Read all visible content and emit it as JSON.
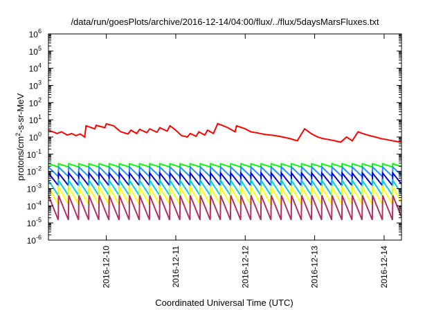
{
  "chart_data": {
    "type": "line",
    "title": "/data/run/goesPlots/archive/2016-12-14/04:00/flux/../flux/5daysMarsFluxes.txt",
    "xlabel": "Coordinated Universal Time (UTC)",
    "ylabel": {
      "pre": "protons/cm",
      "sup": "2",
      "post": "-s-sr-MeV"
    },
    "y_scale": "log",
    "grid": false,
    "legend": "none",
    "xlim": [
      "2016-12-09T04:00",
      "2016-12-14T06:00"
    ],
    "ylim": [
      1e-06,
      1000000.0
    ],
    "x_ticks": [
      {
        "label": "2016-12-10",
        "x": "2016-12-10T00:00"
      },
      {
        "label": "2016-12-11",
        "x": "2016-12-11T00:00"
      },
      {
        "label": "2016-12-12",
        "x": "2016-12-12T00:00"
      },
      {
        "label": "2016-12-13",
        "x": "2016-12-13T00:00"
      },
      {
        "label": "2016-12-14",
        "x": "2016-12-14T00:00"
      }
    ],
    "y_ticks": [
      {
        "base": "10",
        "exp": "-6",
        "value": 1e-06
      },
      {
        "base": "10",
        "exp": "-5",
        "value": 1e-05
      },
      {
        "base": "10",
        "exp": "-4",
        "value": 0.0001
      },
      {
        "base": "10",
        "exp": "-3",
        "value": 0.001
      },
      {
        "base": "10",
        "exp": "-2",
        "value": 0.01
      },
      {
        "base": "10",
        "exp": "-1",
        "value": 0.1
      },
      {
        "base": "10",
        "exp": "0",
        "value": 1
      },
      {
        "base": "10",
        "exp": "1",
        "value": 10
      },
      {
        "base": "10",
        "exp": "2",
        "value": 100
      },
      {
        "base": "10",
        "exp": "3",
        "value": 1000
      },
      {
        "base": "10",
        "exp": "4",
        "value": 10000
      },
      {
        "base": "10",
        "exp": "5",
        "value": 100000
      },
      {
        "base": "10",
        "exp": "6",
        "value": 1000000
      }
    ],
    "series": [
      {
        "color": "#ff0000",
        "x": [
          "2016-12-09T04:00",
          "2016-12-09T07:00",
          "2016-12-09T08:30",
          "2016-12-09T10:30",
          "2016-12-09T12:00",
          "2016-12-09T13:30",
          "2016-12-09T15:00",
          "2016-12-09T16:30",
          "2016-12-09T17:00",
          "2016-12-09T20:00",
          "2016-12-09T20:30",
          "2016-12-09T23:30",
          "2016-12-10T00:00",
          "2016-12-10T02:30",
          "2016-12-10T05:00",
          "2016-12-10T07:30",
          "2016-12-10T08:30",
          "2016-12-10T10:30",
          "2016-12-10T11:30",
          "2016-12-10T14:00",
          "2016-12-10T15:00",
          "2016-12-10T17:30",
          "2016-12-10T18:30",
          "2016-12-10T21:00",
          "2016-12-10T22:00",
          "2016-12-11T00:00",
          "2016-12-11T02:00",
          "2016-12-11T04:00",
          "2016-12-11T05:00",
          "2016-12-11T07:00",
          "2016-12-11T08:00",
          "2016-12-11T10:00",
          "2016-12-11T11:00",
          "2016-12-11T13:00",
          "2016-12-11T14:30",
          "2016-12-11T18:00",
          "2016-12-11T20:30",
          "2016-12-11T21:00",
          "2016-12-12T00:00",
          "2016-12-12T02:00",
          "2016-12-12T04:30",
          "2016-12-12T07:00",
          "2016-12-12T10:30",
          "2016-12-12T13:00",
          "2016-12-12T15:30",
          "2016-12-12T18:00",
          "2016-12-12T20:30",
          "2016-12-12T23:00",
          "2016-12-13T01:00",
          "2016-12-13T03:00",
          "2016-12-13T05:00",
          "2016-12-13T07:00",
          "2016-12-13T09:00",
          "2016-12-13T11:00",
          "2016-12-13T13:00",
          "2016-12-13T15:00",
          "2016-12-13T17:00",
          "2016-12-13T19:00",
          "2016-12-13T21:00",
          "2016-12-13T23:00",
          "2016-12-14T01:00",
          "2016-12-14T03:00",
          "2016-12-14T06:00"
        ],
        "values": [
          2.5,
          1.6,
          2.0,
          1.3,
          1.6,
          1.2,
          1.5,
          1.0,
          4.5,
          3.0,
          4.8,
          3.5,
          5.8,
          4.5,
          2.0,
          1.5,
          2.5,
          1.6,
          2.8,
          1.8,
          3.0,
          1.9,
          3.5,
          2.2,
          4.5,
          2.5,
          1.2,
          1.0,
          1.6,
          1.1,
          2.0,
          1.3,
          2.5,
          1.6,
          6.0,
          3.5,
          2.0,
          4.5,
          3.0,
          2.0,
          1.7,
          1.4,
          1.2,
          1.0,
          0.8,
          0.6,
          3.0,
          1.5,
          1.0,
          0.8,
          0.7,
          0.6,
          0.5,
          1.0,
          0.6,
          2.0,
          1.5,
          1.2,
          1.0,
          0.8,
          0.7,
          0.6,
          0.5
        ]
      },
      {
        "color": "#00ff00",
        "start": "2016-12-09T04:00",
        "period_hours": 3.5,
        "peak": 0.028,
        "trough": 0.018,
        "count": 36
      },
      {
        "color": "#1e90ff",
        "start": "2016-12-09T04:00",
        "period_hours": 3.5,
        "peak": 0.018,
        "trough": 0.005,
        "count": 36
      },
      {
        "color": "#0000cd",
        "start": "2016-12-09T04:00",
        "period_hours": 3.5,
        "peak": 0.008,
        "trough": 0.0015,
        "count": 36
      },
      {
        "color": "#00ced1",
        "start": "2016-12-09T04:00",
        "period_hours": 3.5,
        "peak": 0.003,
        "trough": 0.0004,
        "count": 36
      },
      {
        "color": "#ffff00",
        "start": "2016-12-09T04:00",
        "period_hours": 3.5,
        "peak": 0.0012,
        "trough": 0.00012,
        "count": 36
      },
      {
        "color": "#b03060",
        "start": "2016-12-09T04:00",
        "period_hours": 3.5,
        "peak": 0.0004,
        "trough": 1.5e-05,
        "count": 36
      }
    ]
  }
}
